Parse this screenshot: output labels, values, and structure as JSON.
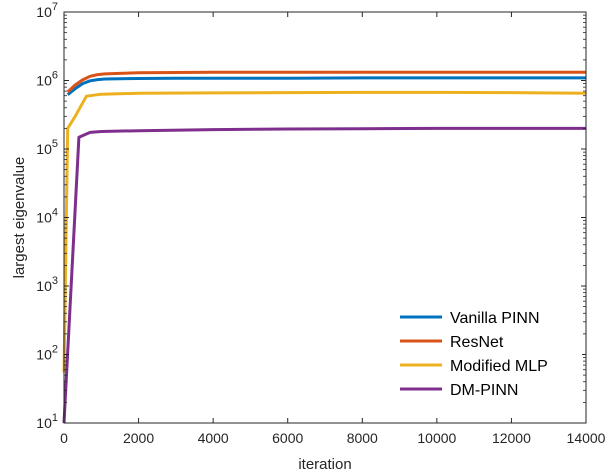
{
  "chart_data": {
    "type": "line",
    "title": "",
    "xlabel": "iteration",
    "ylabel": "largest eigenvalue",
    "xlim": [
      0,
      14000
    ],
    "ylim": [
      10,
      10000000
    ],
    "yscale": "log",
    "grid": false,
    "legend_position": "bottom-right",
    "x_ticks": [
      0,
      2000,
      4000,
      6000,
      8000,
      10000,
      12000,
      14000
    ],
    "x_tick_labels": [
      "0",
      "2000",
      "4000",
      "6000",
      "8000",
      "10000",
      "12000",
      "14000"
    ],
    "y_ticks": [
      10,
      100,
      1000,
      10000,
      100000,
      1000000,
      10000000
    ],
    "y_tick_labels": [
      {
        "base": "10",
        "exp": "1"
      },
      {
        "base": "10",
        "exp": "2"
      },
      {
        "base": "10",
        "exp": "3"
      },
      {
        "base": "10",
        "exp": "4"
      },
      {
        "base": "10",
        "exp": "5"
      },
      {
        "base": "10",
        "exp": "6"
      },
      {
        "base": "10",
        "exp": "7"
      }
    ],
    "series": [
      {
        "name": "Vanilla PINN",
        "color": "#0072BD",
        "x": [
          100,
          300,
          500,
          700,
          900,
          1100,
          1500,
          2000,
          3000,
          4000,
          6000,
          8000,
          10000,
          12000,
          14000
        ],
        "y": [
          620000,
          760000,
          900000,
          990000,
          1030000,
          1050000,
          1060000,
          1070000,
          1080000,
          1080000,
          1080000,
          1090000,
          1090000,
          1090000,
          1090000
        ]
      },
      {
        "name": "ResNet",
        "color": "#D95319",
        "x": [
          100,
          300,
          500,
          700,
          900,
          1100,
          1500,
          2000,
          3000,
          4000,
          6000,
          8000,
          10000,
          12000,
          14000
        ],
        "y": [
          680000,
          860000,
          1020000,
          1150000,
          1220000,
          1250000,
          1270000,
          1300000,
          1310000,
          1320000,
          1320000,
          1320000,
          1320000,
          1320000,
          1320000
        ]
      },
      {
        "name": "Modified MLP",
        "color": "#EDB120",
        "x": [
          0,
          100,
          300,
          600,
          1000,
          2000,
          4000,
          6000,
          8000,
          10000,
          12000,
          14000
        ],
        "y": [
          55,
          200000,
          300000,
          590000,
          630000,
          650000,
          660000,
          665000,
          670000,
          670000,
          665000,
          650000
        ]
      },
      {
        "name": "DM-PINN",
        "color": "#7E2F8E",
        "x": [
          0,
          400,
          700,
          1000,
          2000,
          4000,
          6000,
          8000,
          10000,
          12000,
          14000
        ],
        "y": [
          10,
          148000,
          175000,
          180000,
          185000,
          192000,
          196000,
          198000,
          200000,
          200000,
          200000
        ]
      }
    ]
  }
}
